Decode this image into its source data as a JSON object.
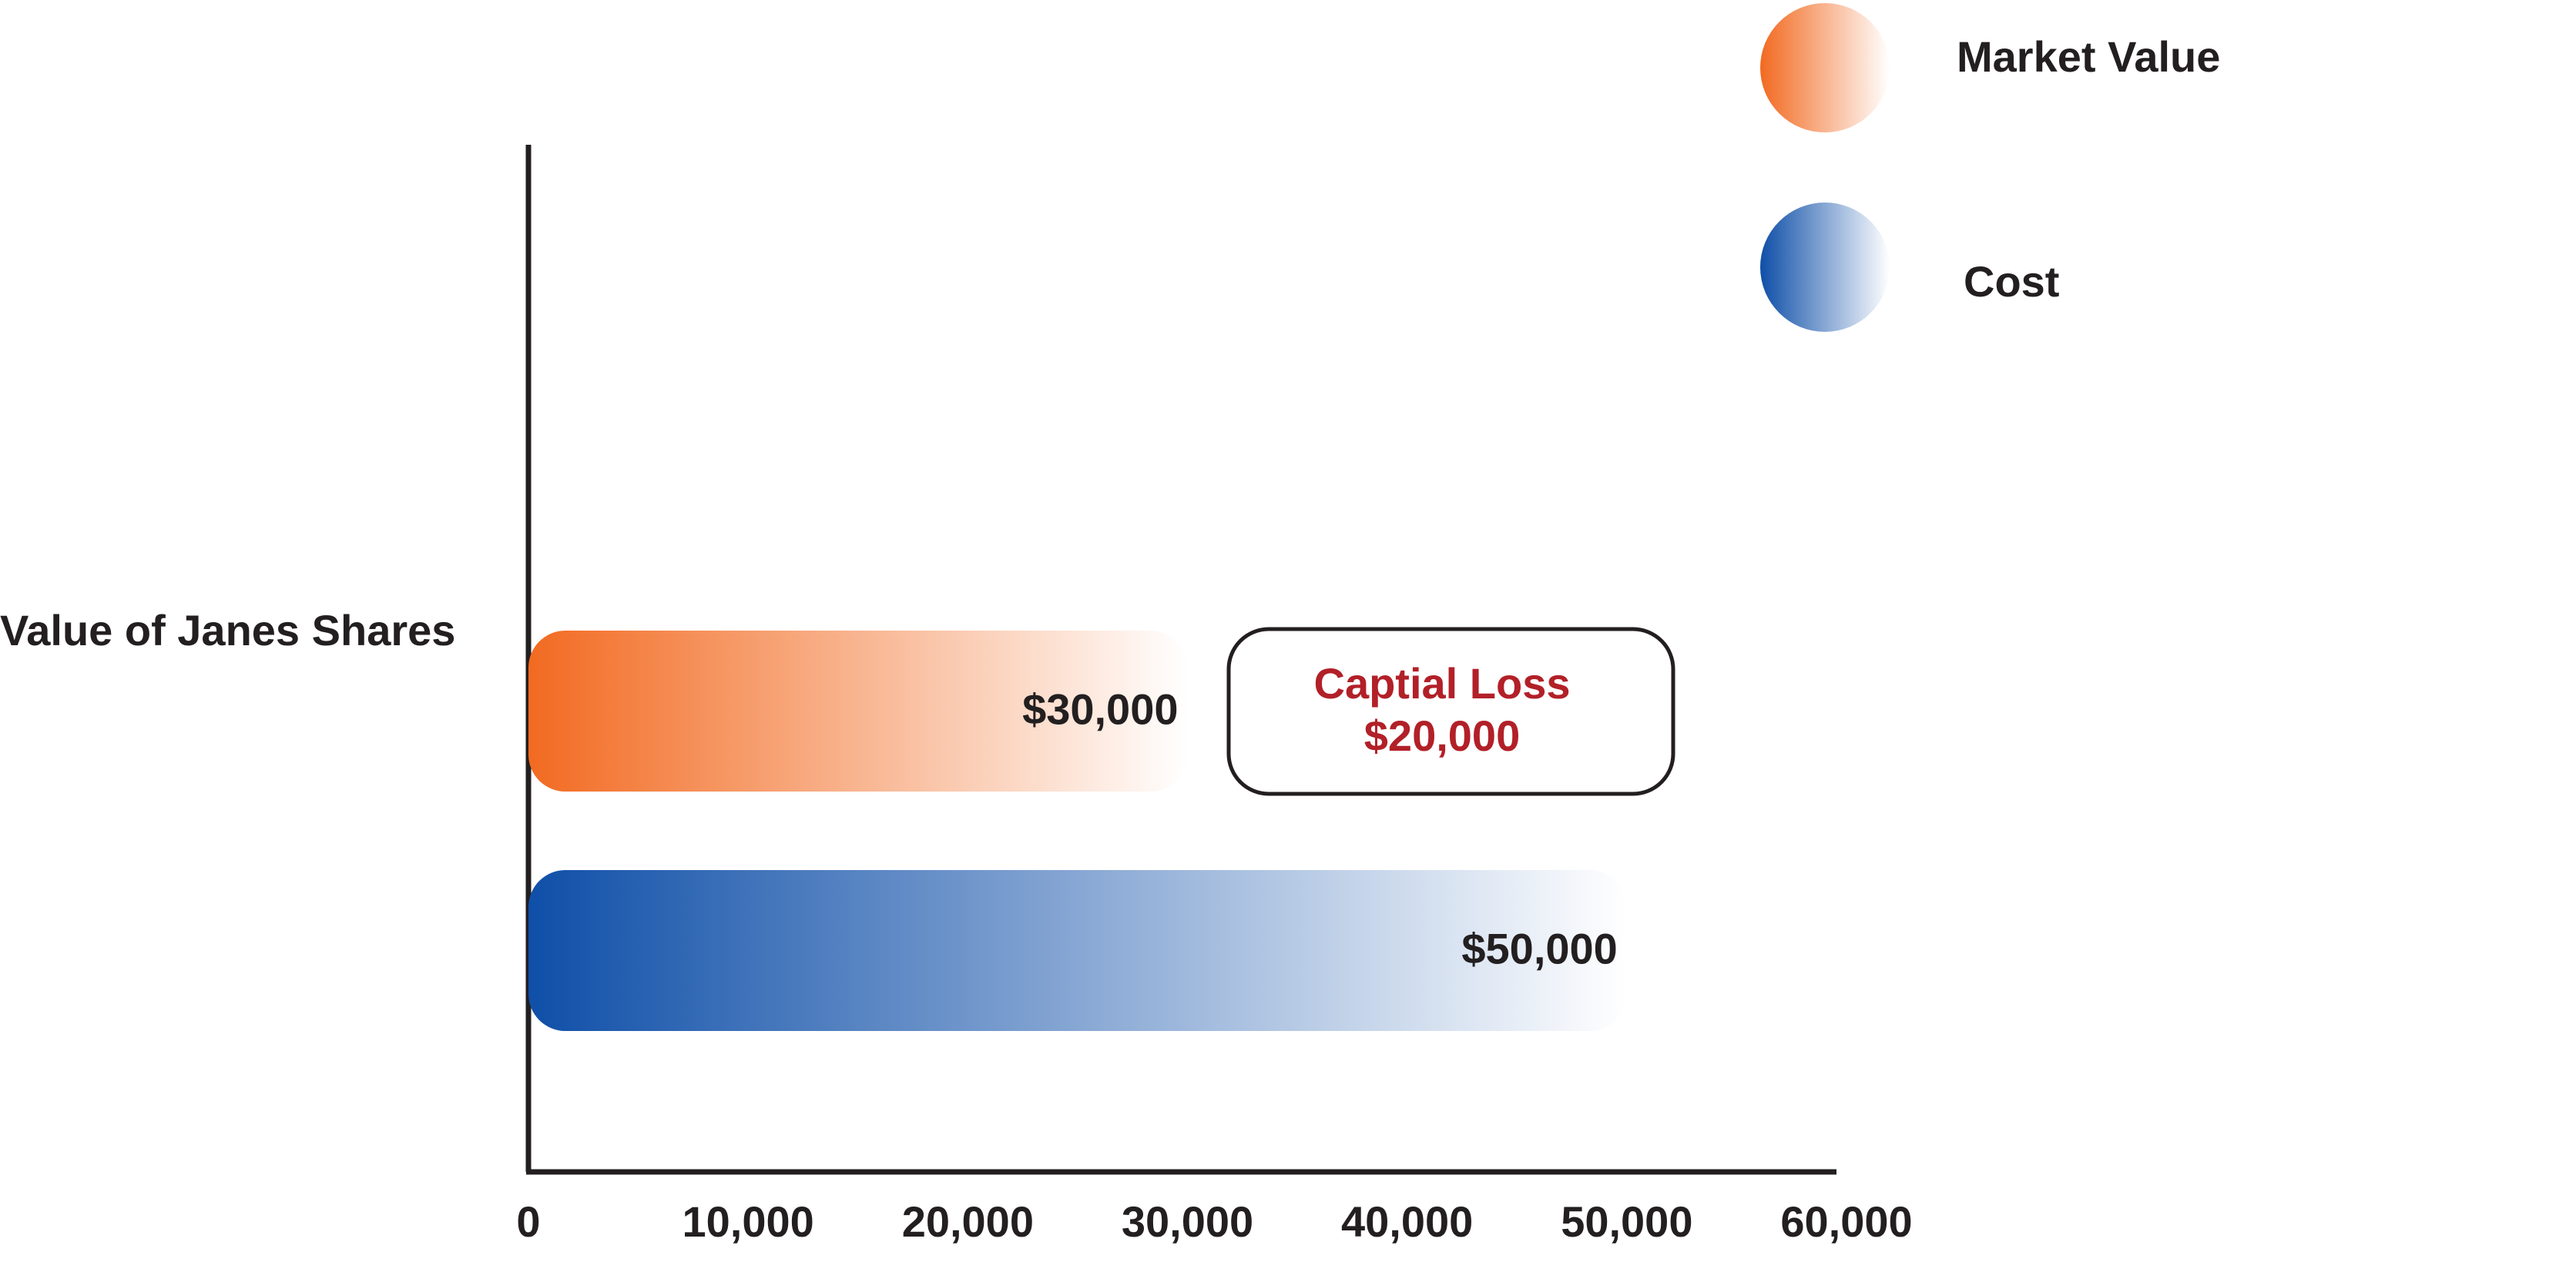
{
  "chart_data": {
    "type": "hbar",
    "categories": [
      "Value of Janes Shares"
    ],
    "series": [
      {
        "name": "Market Value",
        "color": "#f26a21",
        "values": [
          30000
        ],
        "value_labels": [
          "$30,000"
        ]
      },
      {
        "name": "Cost",
        "color": "#0f4fa8",
        "values": [
          50000
        ],
        "value_labels": [
          "$50,000"
        ]
      }
    ],
    "xlim": [
      0,
      60000
    ],
    "xticks": [
      0,
      {
        "value": 10000,
        "label": "10,000"
      },
      {
        "value": 20000,
        "label": "20,000"
      },
      {
        "value": 30000,
        "label": "30,000"
      },
      {
        "value": 40000,
        "label": "40,000"
      },
      {
        "value": 50000,
        "label": "50,000"
      },
      {
        "value": 60000,
        "label": "60,000"
      }
    ],
    "annotation": [
      "Captial Loss",
      "$20,000"
    ],
    "annotation_color": "#b22028",
    "grid": false
  }
}
